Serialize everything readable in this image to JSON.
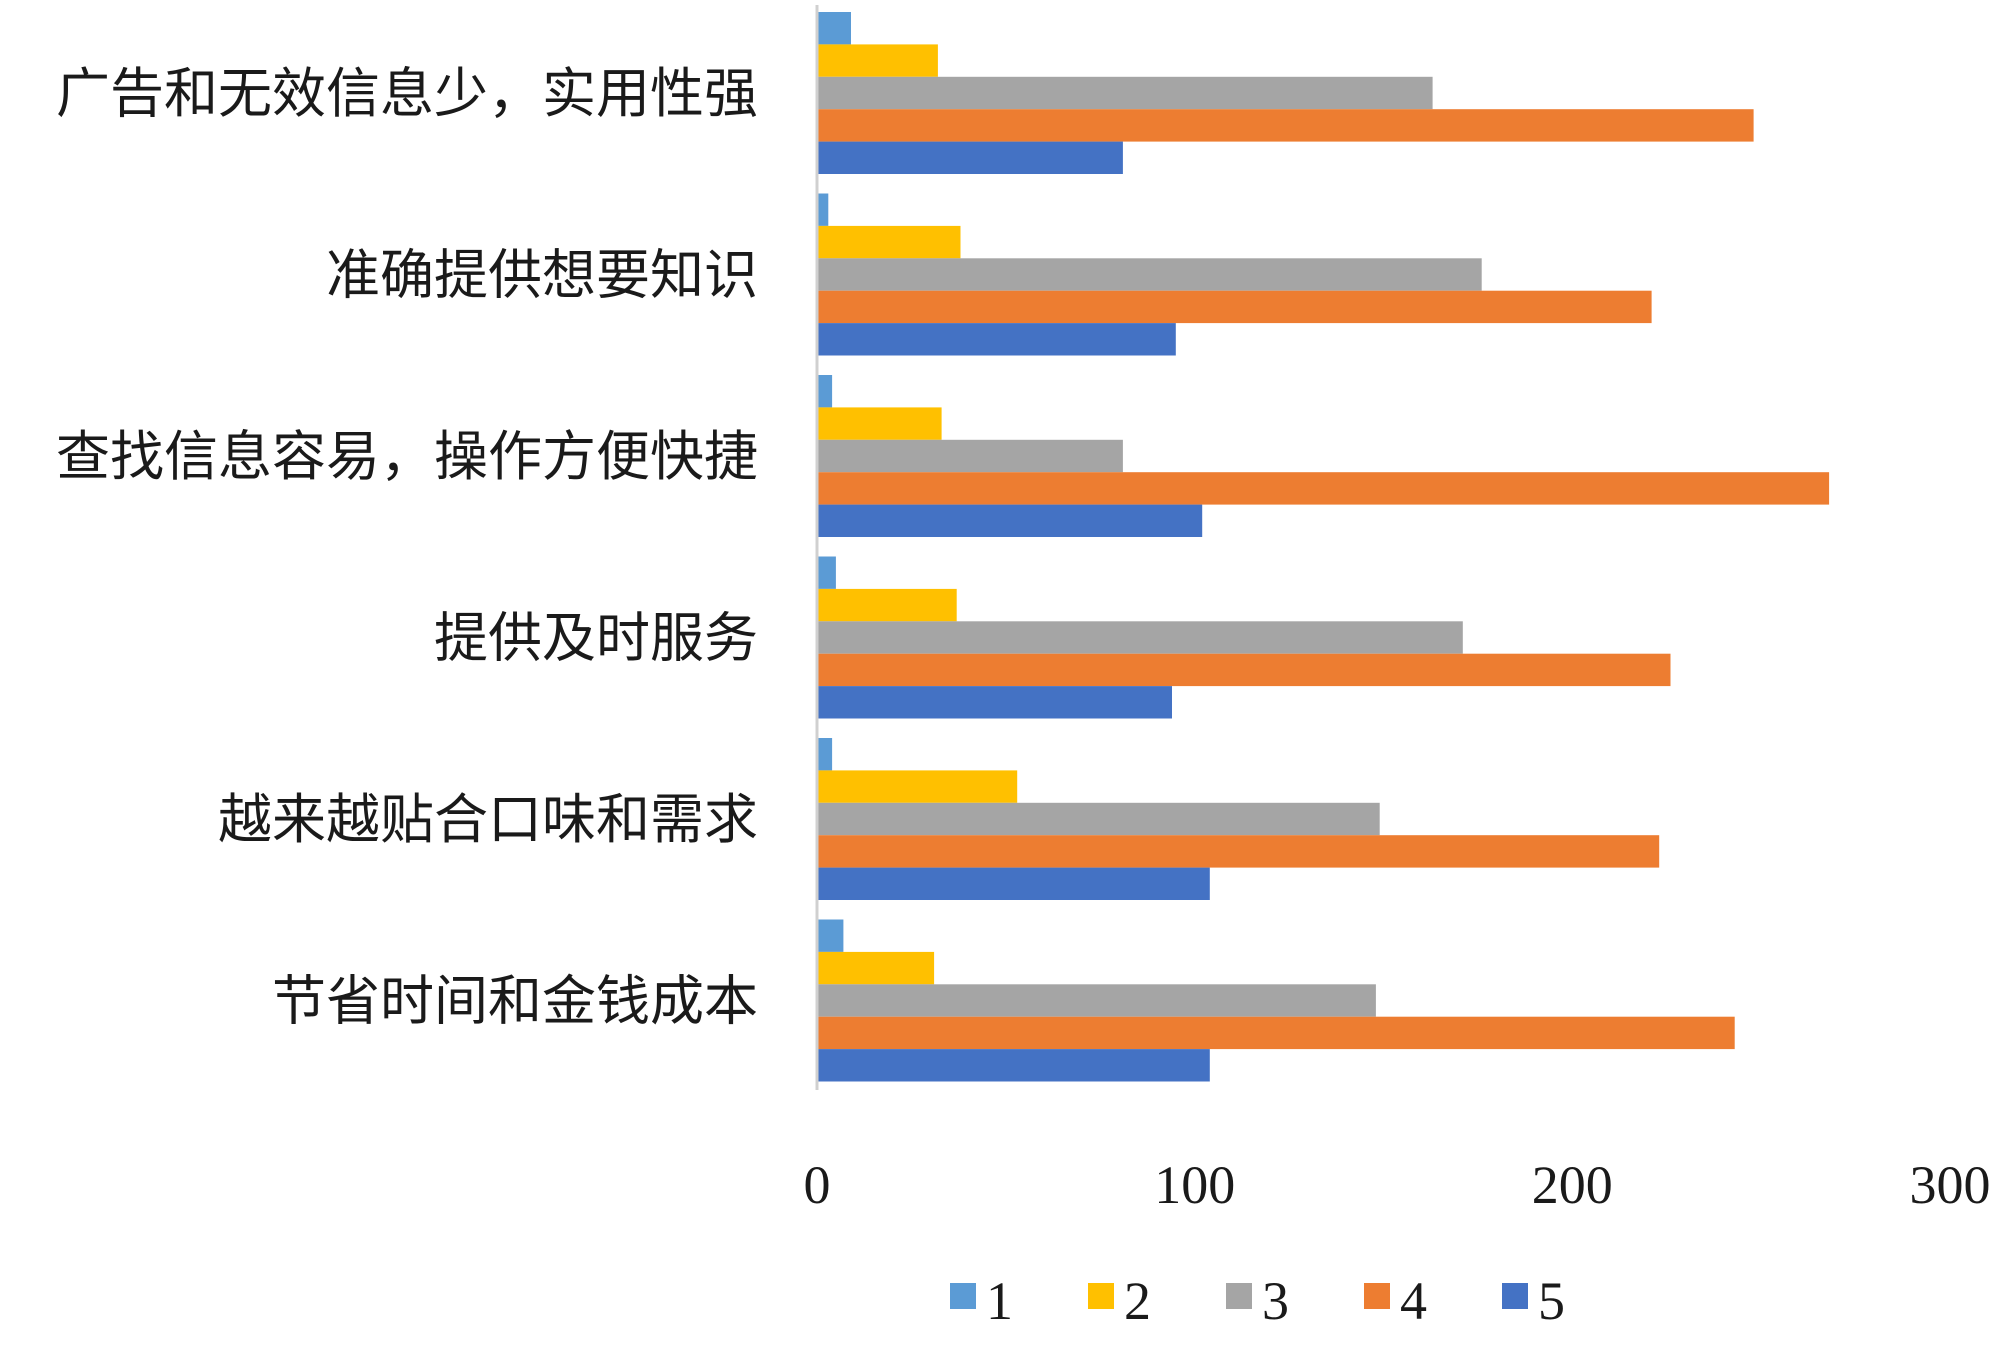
{
  "chart_data": {
    "type": "bar",
    "orientation": "horizontal",
    "categories": [
      "广告和无效信息少，实用性强",
      "准确提供想要知识",
      "查找信息容易，操作方便快捷",
      "提供及时服务",
      "越来越贴合口味和需求",
      "节省时间和金钱成本"
    ],
    "series": [
      {
        "name": "1",
        "color": "#5b9bd5",
        "values": [
          9,
          3,
          4,
          5,
          4,
          7
        ]
      },
      {
        "name": "2",
        "color": "#ffc000",
        "values": [
          32,
          38,
          33,
          37,
          53,
          31
        ]
      },
      {
        "name": "3",
        "color": "#a5a5a5",
        "values": [
          163,
          176,
          81,
          171,
          149,
          148
        ]
      },
      {
        "name": "4",
        "color": "#ed7d31",
        "values": [
          248,
          221,
          268,
          226,
          223,
          243
        ]
      },
      {
        "name": "5",
        "color": "#4472c4",
        "values": [
          81,
          95,
          102,
          94,
          104,
          104
        ]
      }
    ],
    "x_ticks": [
      "0",
      "100",
      "200",
      "300"
    ],
    "xlim": [
      0,
      300
    ],
    "legend_position": "bottom",
    "grid": false
  }
}
